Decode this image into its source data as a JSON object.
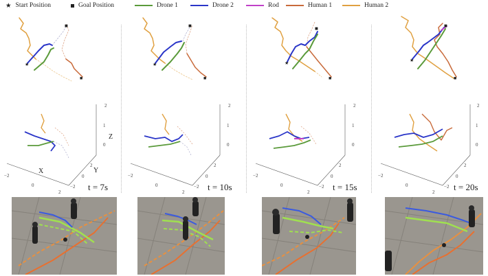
{
  "legend": {
    "start": "Start Position",
    "goal": "Goal Position",
    "drone1": "Drone 1",
    "drone2": "Drone 2",
    "rod": "Rod",
    "human1": "Human 1",
    "human2": "Human 2"
  },
  "colors": {
    "drone1": "#5a9a3a",
    "drone2": "#2a35c8",
    "rod": "#c040c8",
    "human1": "#c86a3a",
    "human2": "#e0a040"
  },
  "panels": [
    {
      "time_label": "t = 7s"
    },
    {
      "time_label": "t = 10s"
    },
    {
      "time_label": "t = 15s"
    },
    {
      "time_label": "t = 20s"
    }
  ],
  "axes3d": {
    "x_label": "X",
    "y_label": "Y",
    "z_label": "Z",
    "z_ticks": [
      "2",
      "1",
      "0",
      "−2"
    ],
    "y_ticks": [
      "2",
      "0",
      "−2"
    ],
    "x_ticks": [
      "−2",
      "0",
      "2"
    ]
  }
}
